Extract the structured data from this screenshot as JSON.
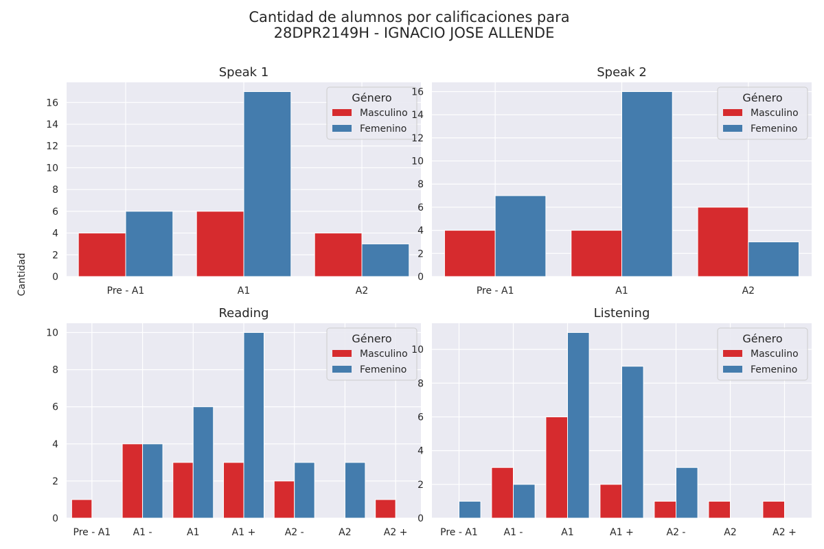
{
  "figure": {
    "title_line1": "Cantidad de alumnos por calificaciones para",
    "title_line2": "28DPR2149H - IGNACIO JOSE ALLENDE",
    "ylabel": "Cantidad"
  },
  "colors": {
    "background": "#eaeaf2",
    "grid": "#ffffff",
    "masculino": "#d62b2e",
    "femenino": "#447cad",
    "text": "#262626"
  },
  "chart_data": [
    {
      "type": "bar",
      "title": "Speak 1",
      "categories": [
        "Pre - A1",
        "A1",
        "A2"
      ],
      "series": [
        {
          "name": "Masculino",
          "values": [
            4,
            6,
            4
          ]
        },
        {
          "name": "Femenino",
          "values": [
            6,
            17,
            3
          ]
        }
      ],
      "ylim": [
        0,
        17.85
      ],
      "yticks": [
        0,
        2,
        4,
        6,
        8,
        10,
        12,
        14,
        16
      ],
      "legend": {
        "title": "Género",
        "placement": "top-right"
      },
      "grid": true
    },
    {
      "type": "bar",
      "title": "Speak 2",
      "categories": [
        "Pre - A1",
        "A1",
        "A2"
      ],
      "series": [
        {
          "name": "Masculino",
          "values": [
            4,
            4,
            6
          ]
        },
        {
          "name": "Femenino",
          "values": [
            7,
            16,
            3
          ]
        }
      ],
      "ylim": [
        0,
        16.8
      ],
      "yticks": [
        0,
        2,
        4,
        6,
        8,
        10,
        12,
        14,
        16
      ],
      "legend": {
        "title": "Género",
        "placement": "top-right"
      },
      "grid": true
    },
    {
      "type": "bar",
      "title": "Reading",
      "categories": [
        "Pre - A1",
        "A1 -",
        "A1",
        "A1 +",
        "A2 -",
        "A2",
        "A2 +"
      ],
      "series": [
        {
          "name": "Masculino",
          "values": [
            1,
            4,
            3,
            3,
            2,
            0,
            1
          ]
        },
        {
          "name": "Femenino",
          "values": [
            0,
            4,
            6,
            10,
            3,
            3,
            0
          ]
        }
      ],
      "ylim": [
        0,
        10.5
      ],
      "yticks": [
        0,
        2,
        4,
        6,
        8,
        10
      ],
      "legend": {
        "title": "Género",
        "placement": "top-right"
      },
      "grid": true
    },
    {
      "type": "bar",
      "title": "Listening",
      "categories": [
        "Pre - A1",
        "A1 -",
        "A1",
        "A1 +",
        "A2 -",
        "A2",
        "A2 +"
      ],
      "series": [
        {
          "name": "Masculino",
          "values": [
            0,
            3,
            6,
            2,
            1,
            1,
            1
          ]
        },
        {
          "name": "Femenino",
          "values": [
            1,
            2,
            11,
            9,
            3,
            0,
            0
          ]
        }
      ],
      "ylim": [
        0,
        11.55
      ],
      "yticks": [
        0,
        2,
        4,
        6,
        8,
        10
      ],
      "legend": {
        "title": "Género",
        "placement": "top-right"
      },
      "grid": true
    }
  ]
}
